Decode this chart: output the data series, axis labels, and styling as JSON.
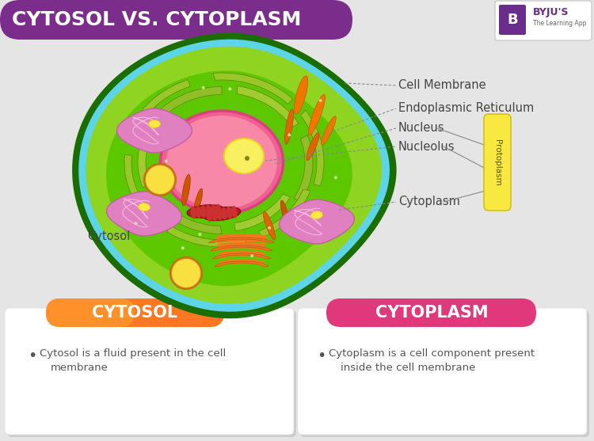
{
  "bg_color": "#e5e5e5",
  "title_bg_color": "#7b2d8b",
  "title_text": "CYTOSOL VS. CYTOPLASM",
  "title_text_color": "#ffffff",
  "byju_logo_color": "#6b2d8b",
  "label_cell_membrane": "Cell Membrane",
  "label_endoplasmic": "Endoplasmic Reticulum",
  "label_nucleus": "Nucleus",
  "label_nucleolus": "Nucleolus",
  "label_cytoplasm": "Cytoplasm",
  "label_cytosol": "Cytosol",
  "label_protoplasm": "Protoplasm",
  "box1_title": "CYTOSOL",
  "box1_title_color_left": "#ff7700",
  "box1_title_color_right": "#ff4400",
  "box1_text": "Cytosol is a fluid present in the cell\n     membrane",
  "box2_title": "CYTOPLASM",
  "box2_title_color": "#e0387a",
  "box2_text": "Cytoplasm is a cell component present\n  inside the cell membrane"
}
